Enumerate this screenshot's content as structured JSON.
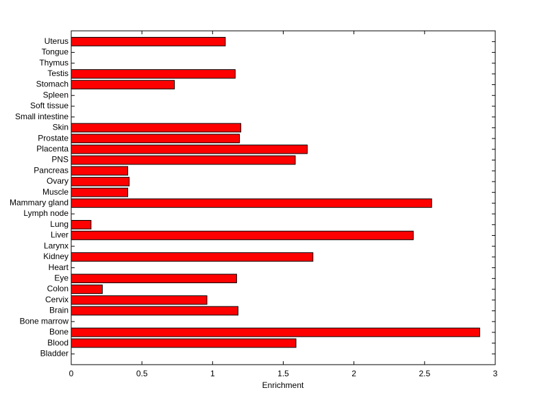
{
  "chart_data": {
    "type": "barh",
    "xlabel": "Enrichment",
    "categories": [
      "Bladder",
      "Blood",
      "Bone",
      "Bone marrow",
      "Brain",
      "Cervix",
      "Colon",
      "Eye",
      "Heart",
      "Kidney",
      "Larynx",
      "Liver",
      "Lung",
      "Lymph node",
      "Mammary gland",
      "Muscle",
      "Ovary",
      "Pancreas",
      "PNS",
      "Placenta",
      "Prostate",
      "Skin",
      "Small intestine",
      "Soft tissue",
      "Spleen",
      "Stomach",
      "Testis",
      "Thymus",
      "Tongue",
      "Uterus"
    ],
    "values": [
      0,
      1.59,
      2.89,
      0,
      1.18,
      0.96,
      0.22,
      1.17,
      0,
      1.71,
      0,
      2.42,
      0.14,
      0,
      2.55,
      0.4,
      0.41,
      0.4,
      1.585,
      1.67,
      1.19,
      1.2,
      0,
      0,
      0,
      0.73,
      1.16,
      0,
      0,
      1.09
    ],
    "color": "#ff0000",
    "xlim": [
      0,
      3
    ],
    "xticks": [
      0,
      0.5,
      1,
      1.5,
      2,
      2.5,
      3
    ]
  }
}
